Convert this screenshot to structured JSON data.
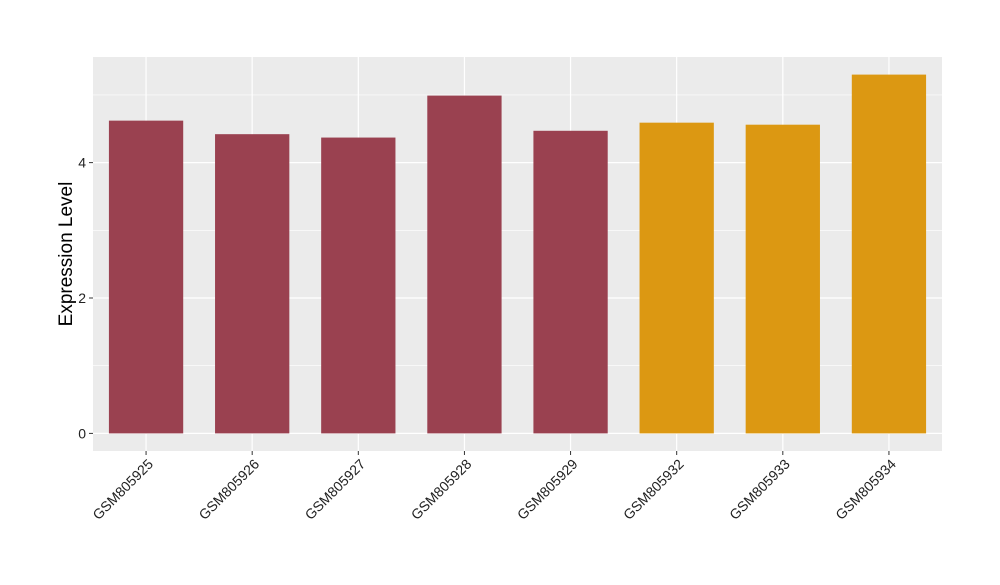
{
  "chart_data": {
    "type": "bar",
    "title": "",
    "xlabel": "",
    "ylabel": "Expression Level",
    "categories": [
      "GSM805925",
      "GSM805926",
      "GSM805927",
      "GSM805928",
      "GSM805929",
      "GSM805932",
      "GSM805933",
      "GSM805934"
    ],
    "values": [
      4.62,
      4.42,
      4.37,
      4.99,
      4.47,
      4.59,
      4.56,
      5.3
    ],
    "bar_colors": [
      "#9A4150",
      "#9A4150",
      "#9A4150",
      "#9A4150",
      "#9A4150",
      "#DC9812",
      "#DC9812",
      "#DC9812"
    ],
    "ylim": [
      -0.26,
      5.56
    ],
    "yticks": [
      0,
      2,
      4
    ],
    "yticks_minor": [
      1,
      3,
      5
    ],
    "grid": true,
    "panel_background": "#EBEBEB"
  }
}
